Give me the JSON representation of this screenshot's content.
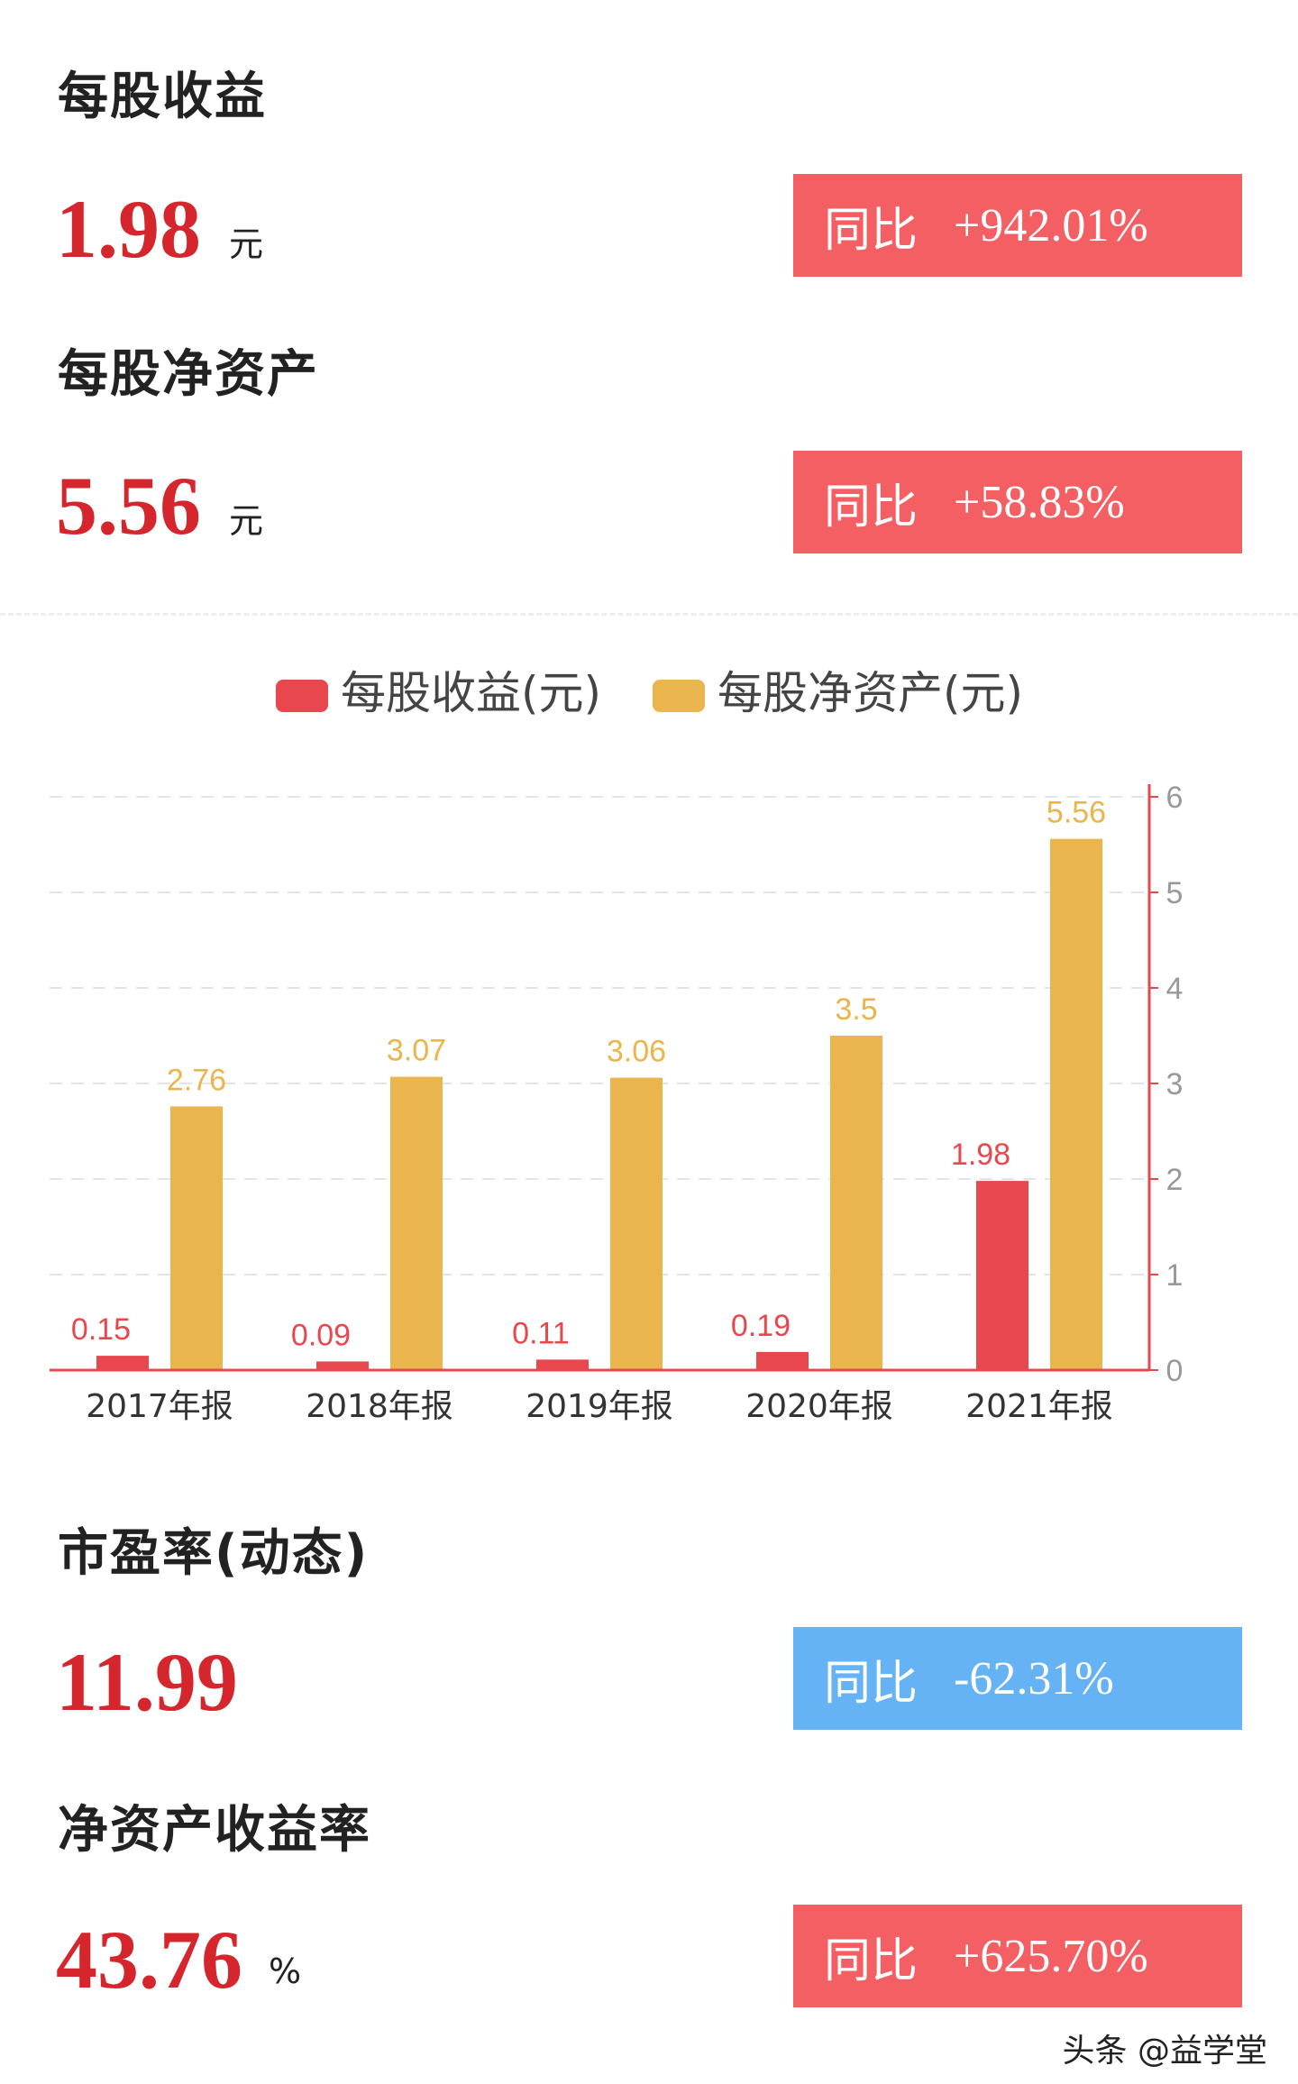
{
  "metrics": {
    "eps": {
      "title": "每股收益",
      "value": "1.98",
      "unit": "元",
      "yoy_label": "同比",
      "yoy_value": "+942.01%"
    },
    "bvps": {
      "title": "每股净资产",
      "value": "5.56",
      "unit": "元",
      "yoy_label": "同比",
      "yoy_value": "+58.83%"
    },
    "pe": {
      "title": "市盈率(动态)",
      "value": "11.99",
      "unit": "",
      "yoy_label": "同比",
      "yoy_value": "-62.31%"
    },
    "roe": {
      "title": "净资产收益率",
      "value": "43.76",
      "unit": "%",
      "yoy_label": "同比",
      "yoy_value": "+625.70%"
    }
  },
  "colors": {
    "red": "#e8484d",
    "gold": "#e9b54c",
    "badge_up": "#f45f63",
    "badge_down": "#65b2f4",
    "value_red": "#d4262c"
  },
  "watermark": "头条 @益学堂",
  "chart_data": {
    "type": "bar",
    "categories": [
      "2017年报",
      "2018年报",
      "2019年报",
      "2020年报",
      "2021年报"
    ],
    "series": [
      {
        "name": "每股收益(元)",
        "values": [
          0.15,
          0.09,
          0.11,
          0.19,
          1.98
        ],
        "color": "#e8484d"
      },
      {
        "name": "每股净资产(元)",
        "values": [
          2.76,
          3.07,
          3.06,
          3.5,
          5.56
        ],
        "color": "#e9b54c"
      }
    ],
    "yticks": [
      "0",
      "1",
      "2",
      "3",
      "4",
      "5",
      "6"
    ],
    "ylim": [
      0,
      6
    ],
    "y_axis_side": "right",
    "grid": true,
    "legend_position": "top-center"
  }
}
